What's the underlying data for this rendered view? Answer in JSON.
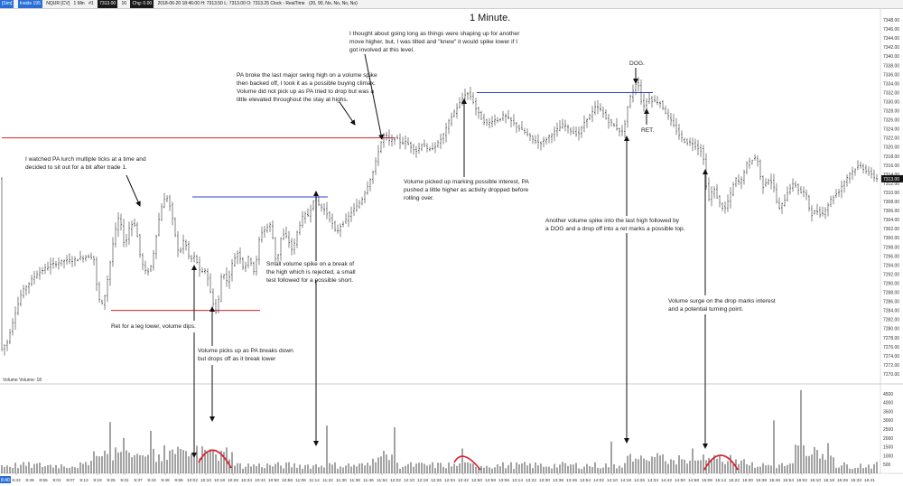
{
  "header": {
    "symbol_button": "[Sim]",
    "instrument": "Inside 195",
    "contract": "NQUR [CV]",
    "interval": "1 Min",
    "period": "#1",
    "last": "7313.00",
    "tick": "16",
    "chg": "Chg: 0.00",
    "stamp": "2018-06-20 18:46:00 H: 7313.50 L: 7313.00 O: 7313.25 Clock - RealTime",
    "settings": "(20, 90, No, No, No, No)"
  },
  "chart_data": {
    "type": "candlestick",
    "title": "1 Minute.",
    "price_axis": {
      "range": [
        7268,
        7350
      ],
      "ticks": [
        7270,
        7272,
        7274,
        7276,
        7278,
        7280,
        7282,
        7284,
        7286,
        7288,
        7290,
        7292,
        7294,
        7296,
        7298,
        7300,
        7302,
        7304,
        7306,
        7308,
        7310,
        7312,
        7314,
        7316,
        7318,
        7320,
        7322,
        7324,
        7326,
        7328,
        7330,
        7332,
        7334,
        7336,
        7338,
        7340,
        7342,
        7344,
        7346,
        7348
      ],
      "tick_labels": [
        "7270.00",
        "7272.00",
        "7274.00",
        "7276.00",
        "7278.00",
        "7280.00",
        "7282.00",
        "7284.00",
        "7286.00",
        "7288.00",
        "7290.00",
        "7292.00",
        "7294.00",
        "7296.00",
        "7298.00",
        "7300.00",
        "7302.00",
        "7304.00",
        "7306.00",
        "7308.00",
        "7310.00",
        "7312.00",
        "7314.00",
        "7316.00",
        "7318.00",
        "7320.00",
        "7322.00",
        "7324.00",
        "7326.00",
        "7328.00",
        "7330.00",
        "7332.00",
        "7334.00",
        "7336.00",
        "7338.00",
        "7340.00",
        "7342.00",
        "7344.00",
        "7346.00",
        "7348.00"
      ],
      "last_price_label": "7313.00"
    },
    "volume_axis": {
      "label": "Volume  Volume: 18",
      "range": [
        0,
        5000
      ],
      "ticks": [
        500,
        1000,
        1500,
        2000,
        2500,
        3000,
        3500,
        4000,
        4500
      ],
      "tick_labels": [
        "500",
        "1000",
        "1500",
        "2000",
        "2500",
        "3000",
        "3500",
        "4000",
        "4500"
      ]
    },
    "time_axis": {
      "first_label": "8:40",
      "labels": [
        "8:43",
        "8:49",
        "8:55",
        "9:01",
        "9:07",
        "9:13",
        "9:19",
        "9:25",
        "9:31",
        "9:37",
        "9:43",
        "9:49",
        "9:55",
        "10:02",
        "10:10",
        "10:18",
        "10:26",
        "10:34",
        "10:42",
        "10:50",
        "10:58",
        "11:06",
        "11:14",
        "11:22",
        "11:30",
        "11:38",
        "11:46",
        "11:54",
        "12:02",
        "12:10",
        "12:18",
        "12:26",
        "12:34",
        "12:42",
        "12:50",
        "12:58",
        "13:06",
        "13:14",
        "13:22",
        "13:30",
        "13:38",
        "13:46",
        "13:54",
        "14:02",
        "14:10",
        "14:18",
        "14:26",
        "14:34",
        "14:42",
        "14:50",
        "14:58",
        "15:06",
        "15:14",
        "15:22",
        "15:30",
        "15:38",
        "15:46",
        "15:54",
        "16:02",
        "16:10",
        "16:18",
        "16:26",
        "16:33",
        "16:41"
      ]
    },
    "price_path": [
      [
        0,
        7275
      ],
      [
        8,
        7277
      ],
      [
        16,
        7283
      ],
      [
        24,
        7288
      ],
      [
        32,
        7290
      ],
      [
        40,
        7292
      ],
      [
        48,
        7293
      ],
      [
        56,
        7294
      ],
      [
        64,
        7294.5
      ],
      [
        72,
        7295
      ],
      [
        80,
        7295
      ],
      [
        88,
        7295.5
      ],
      [
        100,
        7296
      ],
      [
        105,
        7295
      ],
      [
        108,
        7287
      ],
      [
        114,
        7285
      ],
      [
        120,
        7292
      ],
      [
        126,
        7300
      ],
      [
        132,
        7305
      ],
      [
        138,
        7298
      ],
      [
        144,
        7303
      ],
      [
        150,
        7303
      ],
      [
        156,
        7295
      ],
      [
        162,
        7292
      ],
      [
        168,
        7294
      ],
      [
        174,
        7302
      ],
      [
        180,
        7308
      ],
      [
        186,
        7309
      ],
      [
        192,
        7303
      ],
      [
        198,
        7296
      ],
      [
        204,
        7300
      ],
      [
        210,
        7295
      ],
      [
        216,
        7296
      ],
      [
        222,
        7292
      ],
      [
        228,
        7293
      ],
      [
        234,
        7287
      ],
      [
        240,
        7283
      ],
      [
        246,
        7293
      ],
      [
        252,
        7290
      ],
      [
        258,
        7295
      ],
      [
        264,
        7297
      ],
      [
        270,
        7293
      ],
      [
        276,
        7296
      ],
      [
        282,
        7292
      ],
      [
        288,
        7301
      ],
      [
        294,
        7302
      ],
      [
        300,
        7303
      ],
      [
        306,
        7294
      ],
      [
        312,
        7301
      ],
      [
        318,
        7300
      ],
      [
        324,
        7297
      ],
      [
        330,
        7302
      ],
      [
        336,
        7305
      ],
      [
        342,
        7305
      ],
      [
        348,
        7309
      ],
      [
        354,
        7307
      ],
      [
        360,
        7306
      ],
      [
        366,
        7304
      ],
      [
        372,
        7301
      ],
      [
        378,
        7303
      ],
      [
        384,
        7304
      ],
      [
        390,
        7306
      ],
      [
        396,
        7307
      ],
      [
        402,
        7309
      ],
      [
        408,
        7312
      ],
      [
        414,
        7315
      ],
      [
        420,
        7320
      ],
      [
        426,
        7323
      ],
      [
        432,
        7321
      ],
      [
        438,
        7322
      ],
      [
        444,
        7321
      ],
      [
        450,
        7321
      ],
      [
        456,
        7320
      ],
      [
        462,
        7319
      ],
      [
        468,
        7321
      ],
      [
        474,
        7319
      ],
      [
        480,
        7320
      ],
      [
        486,
        7321
      ],
      [
        492,
        7323
      ],
      [
        498,
        7326
      ],
      [
        504,
        7328
      ],
      [
        510,
        7330
      ],
      [
        516,
        7332
      ],
      [
        522,
        7331
      ],
      [
        528,
        7328
      ],
      [
        534,
        7326
      ],
      [
        540,
        7325
      ],
      [
        546,
        7326
      ],
      [
        552,
        7326
      ],
      [
        558,
        7327
      ],
      [
        564,
        7326
      ],
      [
        570,
        7325
      ],
      [
        576,
        7324
      ],
      [
        582,
        7323
      ],
      [
        588,
        7322
      ],
      [
        594,
        7321
      ],
      [
        600,
        7321
      ],
      [
        606,
        7322
      ],
      [
        612,
        7323
      ],
      [
        618,
        7324
      ],
      [
        624,
        7325
      ],
      [
        630,
        7324
      ],
      [
        636,
        7323
      ],
      [
        642,
        7323
      ],
      [
        648,
        7326
      ],
      [
        654,
        7327
      ],
      [
        660,
        7329
      ],
      [
        666,
        7328
      ],
      [
        672,
        7326
      ],
      [
        678,
        7325
      ],
      [
        684,
        7324
      ],
      [
        690,
        7323
      ],
      [
        696,
        7330
      ],
      [
        702,
        7333
      ],
      [
        706,
        7335
      ],
      [
        710,
        7330
      ],
      [
        714,
        7329
      ],
      [
        718,
        7331
      ],
      [
        724,
        7330
      ],
      [
        730,
        7330
      ],
      [
        736,
        7328
      ],
      [
        742,
        7326
      ],
      [
        748,
        7324
      ],
      [
        754,
        7322
      ],
      [
        760,
        7321
      ],
      [
        766,
        7321
      ],
      [
        772,
        7320
      ],
      [
        778,
        7319
      ],
      [
        784,
        7308
      ],
      [
        790,
        7311
      ],
      [
        796,
        7308
      ],
      [
        802,
        7306
      ],
      [
        808,
        7309
      ],
      [
        814,
        7313
      ],
      [
        820,
        7312
      ],
      [
        826,
        7316
      ],
      [
        832,
        7317
      ],
      [
        838,
        7318
      ],
      [
        844,
        7311
      ],
      [
        850,
        7313
      ],
      [
        856,
        7312
      ],
      [
        862,
        7306
      ],
      [
        868,
        7308
      ],
      [
        874,
        7311
      ],
      [
        880,
        7312
      ],
      [
        886,
        7310
      ],
      [
        892,
        7310
      ],
      [
        898,
        7305
      ],
      [
        904,
        7306
      ],
      [
        910,
        7305
      ],
      [
        916,
        7307
      ],
      [
        922,
        7309
      ],
      [
        928,
        7310
      ],
      [
        934,
        7312
      ],
      [
        940,
        7314
      ],
      [
        946,
        7315
      ],
      [
        952,
        7316
      ],
      [
        958,
        7315
      ],
      [
        964,
        7314
      ],
      [
        970,
        7313
      ],
      [
        976,
        7313
      ]
    ],
    "horizontal_levels": [
      {
        "color": "#d9232f",
        "price": 7322,
        "from_label": "8:40",
        "to_label": "12:02"
      },
      {
        "color": "#2b3fd6",
        "price": 7309,
        "from_label": "10:02",
        "to_label": "11:22"
      },
      {
        "color": "#d9232f",
        "price": 7284,
        "from_label": "9:25",
        "to_label": "10:42"
      },
      {
        "color": "#2b3fd6",
        "price": 7332,
        "from_label": "12:50",
        "to_label": "14:34"
      }
    ],
    "volume_spikes": [
      {
        "time": "9:25",
        "volume": 2900
      },
      {
        "time": "9:31",
        "volume": 2000
      },
      {
        "time": "9:43",
        "volume": 2400
      },
      {
        "time": "10:18",
        "volume": 600
      },
      {
        "time": "10:26",
        "volume": 1200
      },
      {
        "time": "11:22",
        "volume": 2700
      },
      {
        "time": "12:02",
        "volume": 2600
      },
      {
        "time": "12:42",
        "volume": 1400
      },
      {
        "time": "14:10",
        "volume": 1800
      },
      {
        "time": "14:58",
        "volume": 1400
      },
      {
        "time": "15:46",
        "volume": 3000
      },
      {
        "time": "16:02",
        "volume": 4700
      }
    ]
  },
  "annotations": {
    "a1": [
      "I watched PA lurch multiple ticks at a time and",
      "decided to sit out for a bit after trade 1."
    ],
    "a2": [
      "PA broke the last major swing high on a volume spike",
      "then backed off, I took it as a possible buying climax.",
      "Volume did not pick up as PA tried to drop but was a",
      "little elevated throughout the stay at highs."
    ],
    "a3": [
      "I thought about going long as things were shaping up for another",
      "move higher, but, I was tilted and \"knew\" it would spike lower if I",
      "got involved at this level."
    ],
    "a4": [
      "Volume picked up marking possible interest, PA",
      "pushed a little higher as activity dropped before",
      "rolling over."
    ],
    "a5": [
      "Small volume spike on a break of",
      "the high which is rejected, a small",
      "test followed for a possible short."
    ],
    "a6": [
      "Ret for a leg lower, volume dips."
    ],
    "a7": [
      "Volume picks up as PA breaks down",
      "but drops off as it break lower"
    ],
    "a8": [
      "Another volume spike into the last high followed by",
      "a DOG and a drop off into a ret marks a possible top."
    ],
    "a9": [
      "Volume surge on the drop marks interest",
      "and a potential turning point."
    ],
    "dog": "DOG.",
    "ret": "RET."
  }
}
